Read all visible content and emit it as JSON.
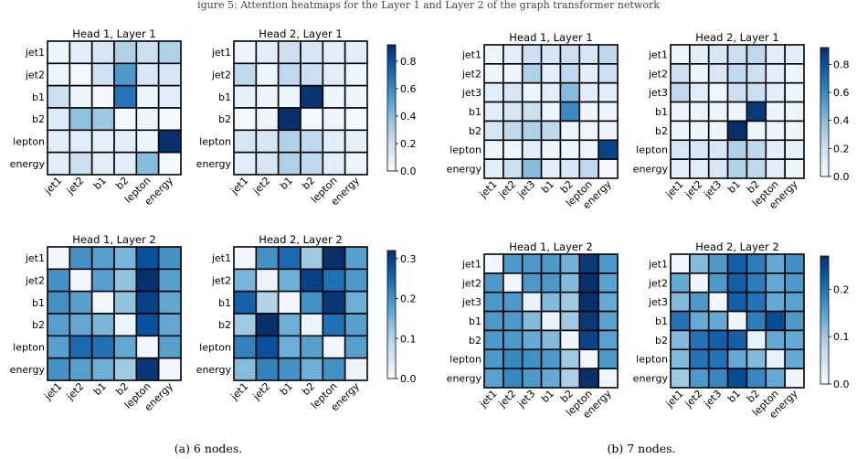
{
  "figure": {
    "header_text": "igure 5: Attention heatmaps for the Layer 1 and Layer 2 of the graph transformer network",
    "captions": [
      "(a) 6 nodes.",
      "(b) 7 nodes."
    ]
  },
  "colors": {
    "cmap": [
      "#f7fbff",
      "#deebf7",
      "#c6dbef",
      "#9ecae1",
      "#6baed6",
      "#4292c6",
      "#2171b5",
      "#08519c",
      "#08306b"
    ]
  },
  "chart_data": [
    {
      "type": "heatmap",
      "title": "Head 1, Layer 1",
      "labels": [
        "jet1",
        "jet2",
        "b1",
        "b2",
        "lepton",
        "energy"
      ],
      "vmin": 0,
      "vmax": 0.92,
      "values": [
        [
          0.05,
          0.1,
          0.15,
          0.3,
          0.2,
          0.3
        ],
        [
          0.05,
          0.02,
          0.18,
          0.55,
          0.15,
          0.15
        ],
        [
          0.2,
          0.05,
          0.02,
          0.68,
          0.05,
          0.1
        ],
        [
          0.12,
          0.38,
          0.35,
          0.02,
          0.05,
          0.02
        ],
        [
          0.1,
          0.1,
          0.08,
          0.1,
          0.05,
          0.92
        ],
        [
          0.1,
          0.2,
          0.1,
          0.1,
          0.4,
          0.02
        ]
      ]
    },
    {
      "type": "heatmap",
      "title": "Head 2, Layer 1",
      "labels": [
        "jet1",
        "jet2",
        "b1",
        "b2",
        "lepton",
        "energy"
      ],
      "vmin": 0,
      "vmax": 0.92,
      "values": [
        [
          0.05,
          0.1,
          0.2,
          0.15,
          0.1,
          0.1
        ],
        [
          0.25,
          0.05,
          0.25,
          0.2,
          0.1,
          0.05
        ],
        [
          0.08,
          0.05,
          0.05,
          0.9,
          0.05,
          0.05
        ],
        [
          0.02,
          0.05,
          0.92,
          0.02,
          0.05,
          0.02
        ],
        [
          0.15,
          0.15,
          0.3,
          0.25,
          0.1,
          0.08
        ],
        [
          0.1,
          0.15,
          0.3,
          0.25,
          0.1,
          0.05
        ]
      ]
    },
    {
      "type": "heatmap",
      "title": "Head 1, Layer 2",
      "labels": [
        "jet1",
        "jet2",
        "b1",
        "b2",
        "lepton",
        "energy"
      ],
      "vmin": 0,
      "vmax": 0.32,
      "values": [
        [
          0.01,
          0.2,
          0.18,
          0.15,
          0.28,
          0.2
        ],
        [
          0.2,
          0.01,
          0.18,
          0.13,
          0.32,
          0.18
        ],
        [
          0.2,
          0.18,
          0.01,
          0.13,
          0.3,
          0.17
        ],
        [
          0.18,
          0.17,
          0.15,
          0.02,
          0.28,
          0.17
        ],
        [
          0.18,
          0.25,
          0.24,
          0.17,
          0.01,
          0.18
        ],
        [
          0.2,
          0.18,
          0.16,
          0.12,
          0.31,
          0.01
        ]
      ]
    },
    {
      "type": "heatmap",
      "title": "Head 2, Layer 2",
      "labels": [
        "jet1",
        "jet2",
        "b1",
        "b2",
        "lepton",
        "energy"
      ],
      "vmin": 0,
      "vmax": 0.32,
      "values": [
        [
          0.01,
          0.2,
          0.25,
          0.12,
          0.32,
          0.18
        ],
        [
          0.15,
          0.02,
          0.16,
          0.3,
          0.24,
          0.19
        ],
        [
          0.26,
          0.1,
          0.01,
          0.2,
          0.31,
          0.16
        ],
        [
          0.12,
          0.32,
          0.16,
          0.02,
          0.24,
          0.18
        ],
        [
          0.22,
          0.28,
          0.16,
          0.18,
          0.01,
          0.18
        ],
        [
          0.14,
          0.22,
          0.2,
          0.16,
          0.2,
          0.02
        ]
      ]
    },
    {
      "type": "heatmap",
      "title": "Head 1, Layer 1",
      "labels": [
        "jet1",
        "jet2",
        "jet3",
        "b1",
        "b2",
        "lepton",
        "energy"
      ],
      "vmin": 0,
      "vmax": 0.92,
      "values": [
        [
          0.05,
          0.1,
          0.2,
          0.15,
          0.2,
          0.15,
          0.25
        ],
        [
          0.05,
          0.05,
          0.3,
          0.1,
          0.25,
          0.1,
          0.2
        ],
        [
          0.1,
          0.15,
          0.05,
          0.1,
          0.4,
          0.1,
          0.1
        ],
        [
          0.1,
          0.15,
          0.2,
          0.05,
          0.6,
          0.05,
          0.05
        ],
        [
          0.15,
          0.25,
          0.3,
          0.25,
          0.05,
          0.05,
          0.05
        ],
        [
          0.05,
          0.05,
          0.1,
          0.05,
          0.05,
          0.05,
          0.85
        ],
        [
          0.1,
          0.2,
          0.4,
          0.1,
          0.15,
          0.25,
          0.02
        ]
      ]
    },
    {
      "type": "heatmap",
      "title": "Head 2, Layer 1",
      "labels": [
        "jet1",
        "jet2",
        "jet3",
        "b1",
        "b2",
        "lepton",
        "energy"
      ],
      "vmin": 0,
      "vmax": 0.92,
      "values": [
        [
          0.05,
          0.1,
          0.15,
          0.2,
          0.25,
          0.1,
          0.1
        ],
        [
          0.2,
          0.05,
          0.15,
          0.25,
          0.2,
          0.1,
          0.05
        ],
        [
          0.25,
          0.1,
          0.05,
          0.2,
          0.2,
          0.1,
          0.05
        ],
        [
          0.05,
          0.05,
          0.05,
          0.05,
          0.88,
          0.05,
          0.05
        ],
        [
          0.05,
          0.05,
          0.05,
          0.92,
          0.05,
          0.05,
          0.05
        ],
        [
          0.15,
          0.15,
          0.15,
          0.3,
          0.25,
          0.1,
          0.08
        ],
        [
          0.1,
          0.1,
          0.15,
          0.3,
          0.25,
          0.1,
          0.05
        ]
      ]
    },
    {
      "type": "heatmap",
      "title": "Head 1, Layer 2",
      "labels": [
        "jet1",
        "jet2",
        "jet3",
        "b1",
        "b2",
        "lepton",
        "energy"
      ],
      "vmin": 0,
      "vmax": 0.27,
      "values": [
        [
          0.01,
          0.16,
          0.16,
          0.16,
          0.13,
          0.26,
          0.16
        ],
        [
          0.16,
          0.01,
          0.16,
          0.16,
          0.12,
          0.27,
          0.15
        ],
        [
          0.16,
          0.16,
          0.02,
          0.12,
          0.1,
          0.27,
          0.14
        ],
        [
          0.16,
          0.16,
          0.12,
          0.02,
          0.1,
          0.26,
          0.15
        ],
        [
          0.16,
          0.16,
          0.14,
          0.12,
          0.01,
          0.25,
          0.15
        ],
        [
          0.16,
          0.18,
          0.17,
          0.16,
          0.1,
          0.01,
          0.16
        ],
        [
          0.15,
          0.18,
          0.16,
          0.14,
          0.09,
          0.27,
          0.01
        ]
      ]
    },
    {
      "type": "heatmap",
      "title": "Head 2, Layer 2",
      "labels": [
        "jet1",
        "jet2",
        "jet3",
        "b1",
        "b2",
        "lepton",
        "energy"
      ],
      "vmin": 0,
      "vmax": 0.27,
      "values": [
        [
          0.01,
          0.12,
          0.16,
          0.22,
          0.19,
          0.14,
          0.17
        ],
        [
          0.14,
          0.01,
          0.16,
          0.22,
          0.19,
          0.14,
          0.16
        ],
        [
          0.12,
          0.16,
          0.01,
          0.22,
          0.2,
          0.14,
          0.15
        ],
        [
          0.2,
          0.14,
          0.14,
          0.01,
          0.19,
          0.24,
          0.16
        ],
        [
          0.12,
          0.2,
          0.22,
          0.22,
          0.02,
          0.14,
          0.14
        ],
        [
          0.12,
          0.2,
          0.2,
          0.14,
          0.12,
          0.02,
          0.14
        ],
        [
          0.1,
          0.16,
          0.18,
          0.24,
          0.18,
          0.14,
          0.01
        ]
      ]
    }
  ],
  "colorbars": [
    {
      "vmin": 0,
      "vmax": 0.92,
      "ticks": [
        "0.0",
        "0.2",
        "0.4",
        "0.6",
        "0.8"
      ],
      "tick_values": [
        0,
        0.2,
        0.4,
        0.6,
        0.8
      ]
    },
    {
      "vmin": 0,
      "vmax": 0.32,
      "ticks": [
        "0.0",
        "0.1",
        "0.2",
        "0.3"
      ],
      "tick_values": [
        0,
        0.1,
        0.2,
        0.3
      ]
    },
    {
      "vmin": 0,
      "vmax": 0.92,
      "ticks": [
        "0.0",
        "0.2",
        "0.4",
        "0.6",
        "0.8"
      ],
      "tick_values": [
        0,
        0.2,
        0.4,
        0.6,
        0.8
      ]
    },
    {
      "vmin": 0,
      "vmax": 0.27,
      "ticks": [
        "0.0",
        "0.1",
        "0.2"
      ],
      "tick_values": [
        0,
        0.1,
        0.2
      ]
    }
  ]
}
